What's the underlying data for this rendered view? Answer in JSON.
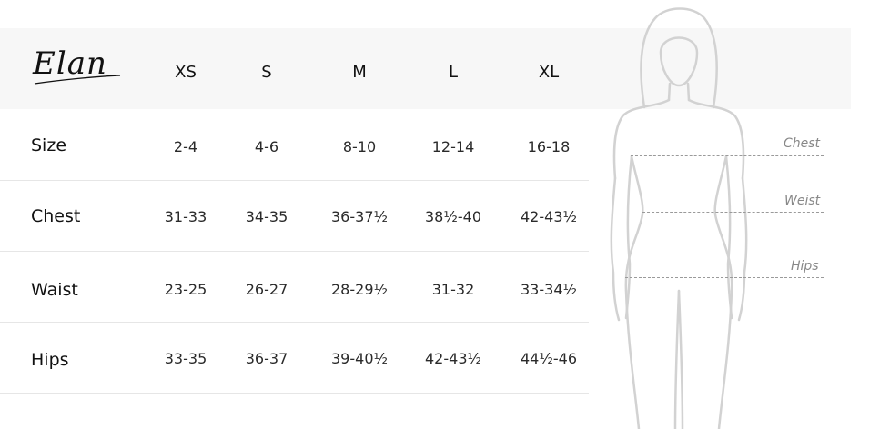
{
  "brand": {
    "logo_text": "Elan"
  },
  "table": {
    "sizes": [
      "XS",
      "S",
      "M",
      "L",
      "XL"
    ],
    "rows": [
      {
        "label": "Size",
        "values": [
          "2-4",
          "4-6",
          "8-10",
          "12-14",
          "16-18"
        ]
      },
      {
        "label": "Chest",
        "values": [
          "31-33",
          "34-35",
          "36-37½",
          "38½-40",
          "42-43½"
        ]
      },
      {
        "label": "Waist",
        "values": [
          "23-25",
          "26-27",
          "28-29½",
          "31-32",
          "33-34½"
        ]
      },
      {
        "label": "Hips",
        "values": [
          "33-35",
          "36-37",
          "39-40½",
          "42-43½",
          "44½-46"
        ]
      }
    ]
  },
  "figure": {
    "labels": {
      "chest": "Chest",
      "waist": "Weist",
      "hips": "Hips"
    }
  }
}
